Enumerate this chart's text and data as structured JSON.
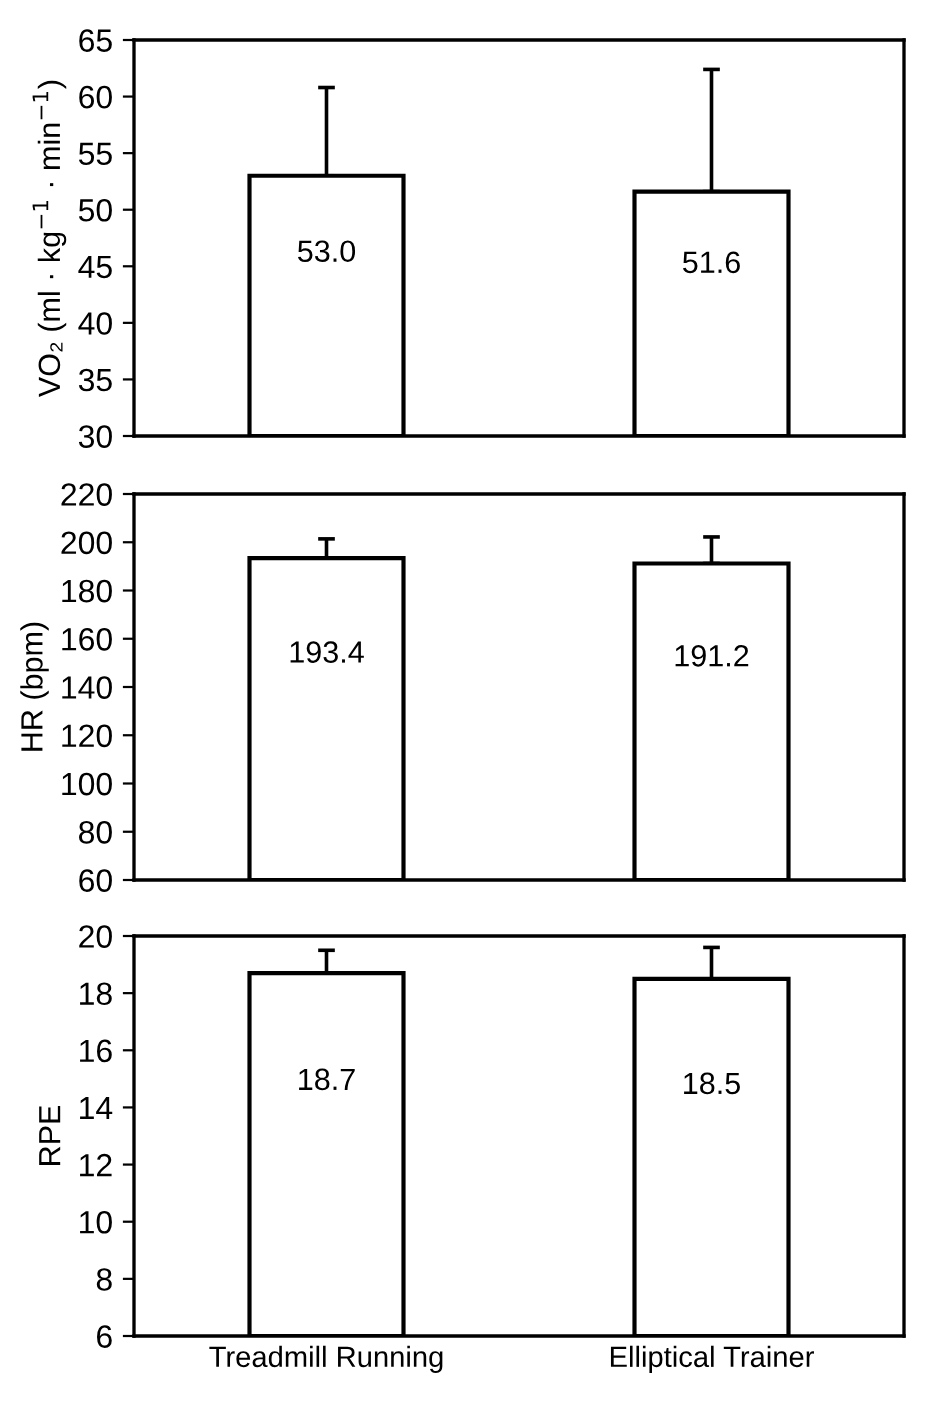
{
  "chart_data": [
    {
      "type": "bar",
      "categories": [
        null,
        null
      ],
      "values": [
        53.0,
        51.6
      ],
      "errors": [
        7.8,
        10.8
      ],
      "color": "#ffffff",
      "ylabel": "VO₂ (ml · kg$^{−1}$ · min$^{−1}$)",
      "ylim": [
        30,
        65
      ],
      "yticks": [
        30,
        35,
        40,
        45,
        50,
        55,
        60,
        65
      ],
      "value_labels": [
        "53.0",
        "51.6"
      ],
      "tick_labels": "y",
      "grid": false,
      "legend": false
    },
    {
      "type": "bar",
      "categories": [
        null,
        null
      ],
      "values": [
        193.4,
        191.2
      ],
      "errors": [
        8,
        11
      ],
      "color": "#ffffff",
      "ylabel": "HR (bpm)",
      "ylim": [
        60,
        220
      ],
      "yticks": [
        60,
        80,
        100,
        120,
        140,
        160,
        180,
        200,
        220
      ],
      "value_labels": [
        "193.4",
        "191.2"
      ],
      "tick_labels": "y",
      "grid": false,
      "legend": false
    },
    {
      "type": "bar",
      "categories": [
        "Treadmill Running",
        "Elliptical Trainer"
      ],
      "values": [
        18.7,
        18.5
      ],
      "errors": [
        0.8,
        1.1
      ],
      "color": "#ffffff",
      "ylabel": "RPE",
      "ylim": [
        6,
        20
      ],
      "yticks": [
        6,
        8,
        10,
        12,
        14,
        16,
        18,
        20
      ],
      "value_labels": [
        "18.7",
        "18.5"
      ],
      "grid": false,
      "legend": false
    }
  ]
}
